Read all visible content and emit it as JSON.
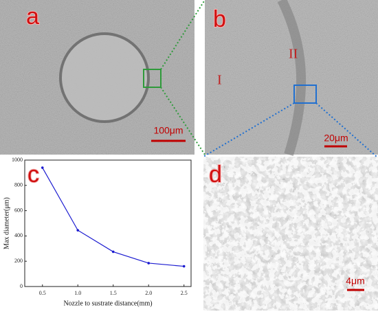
{
  "panels": {
    "a": {
      "label": "a",
      "scale_bar": "100μm"
    },
    "b": {
      "label": "b",
      "scale_bar": "20μm",
      "regions": [
        "I",
        "II"
      ]
    },
    "c": {
      "label": "c"
    },
    "d": {
      "label": "d",
      "scale_bar": "4μm"
    }
  },
  "chart_data": {
    "type": "line",
    "x_label": "Nozzle to sustrate distance(mm)",
    "y_label": "Max diameter(μm)",
    "x": [
      0.5,
      1.0,
      1.5,
      2.0,
      2.5
    ],
    "values": [
      940,
      445,
      275,
      185,
      160
    ],
    "color": "#1a1ad0",
    "xlim": [
      0.25,
      2.6
    ],
    "xticks": [
      0.5,
      {
        "value": 1,
        "label": "1.0"
      },
      1.5,
      {
        "value": 2,
        "label": "2.0"
      },
      2.5
    ],
    "ylim": [
      0,
      1000
    ],
    "yticks": [
      0,
      200,
      400,
      600,
      800,
      1000
    ]
  }
}
